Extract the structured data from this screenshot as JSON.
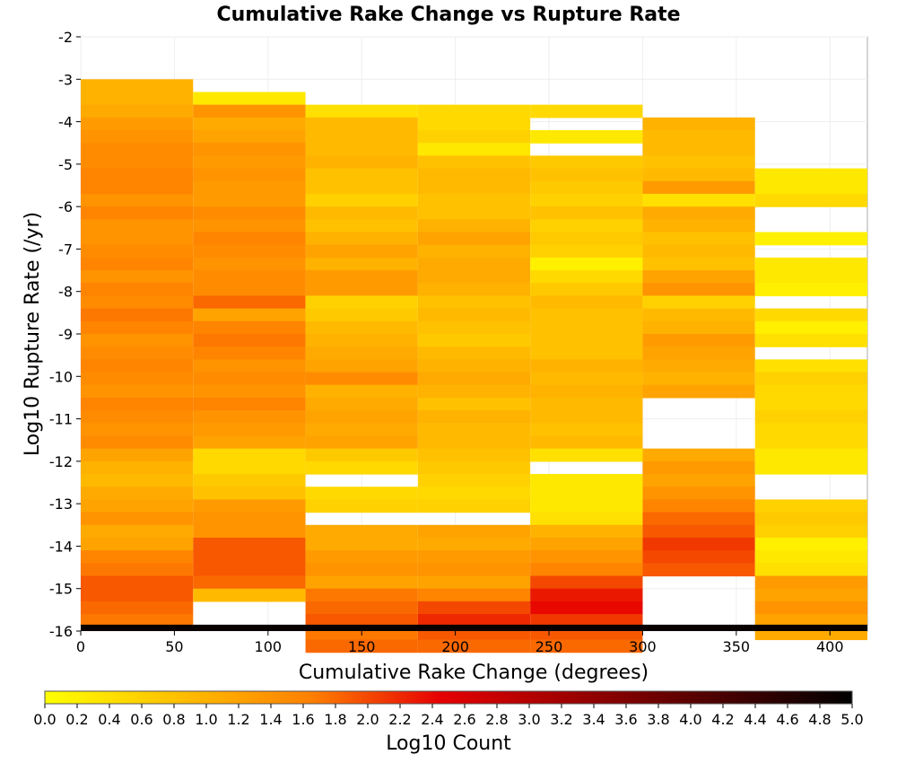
{
  "chart_data": {
    "type": "heatmap",
    "title": "Cumulative Rake Change vs Rupture Rate",
    "xlabel": "Cumulative Rake Change (degrees)",
    "ylabel": "Log10 Rupture Rate (/yr)",
    "xlim": [
      0,
      420
    ],
    "ylim": [
      -16,
      -2
    ],
    "xticks": [
      0,
      50,
      100,
      150,
      200,
      250,
      300,
      350,
      400
    ],
    "yticks": [
      -2,
      -3,
      -4,
      -5,
      -6,
      -7,
      -8,
      -9,
      -10,
      -11,
      -12,
      -13,
      -14,
      -15,
      -16
    ],
    "x_bin_width": 60,
    "y_bin_height": 0.3,
    "grid": true,
    "colorbar": {
      "label": "Log10 Count",
      "range": [
        0,
        5
      ],
      "ticks": [
        "0.0",
        "0.2",
        "0.4",
        "0.6",
        "0.8",
        "1.0",
        "1.2",
        "1.4",
        "1.6",
        "1.8",
        "2.0",
        "2.2",
        "2.4",
        "2.6",
        "2.8",
        "3.0",
        "3.2",
        "3.4",
        "3.6",
        "3.8",
        "4.0",
        "4.2",
        "4.4",
        "4.6",
        "4.8",
        "5.0"
      ],
      "colors": [
        "#ffff00",
        "#ff8000",
        "#e60000",
        "#000000"
      ]
    },
    "columns": [
      {
        "x_start": 0,
        "y_top": -3.0,
        "values": [
          1.0,
          1.0,
          1.1,
          1.3,
          1.4,
          1.5,
          1.5,
          1.6,
          1.6,
          1.4,
          1.6,
          1.4,
          1.4,
          1.5,
          1.6,
          1.4,
          1.6,
          1.5,
          1.7,
          1.6,
          1.4,
          1.5,
          1.6,
          1.5,
          1.4,
          1.6,
          1.5,
          1.4,
          1.5,
          1.2,
          1.0,
          0.9,
          1.1,
          1.2,
          1.4,
          1.1,
          1.2,
          1.6,
          1.7,
          1.9,
          1.9,
          1.8,
          1.7
        ]
      },
      {
        "x_start": 60,
        "y_top": -3.3,
        "values": [
          0.3,
          1.4,
          1.1,
          1.2,
          1.4,
          1.3,
          1.4,
          1.3,
          1.3,
          1.5,
          1.4,
          1.6,
          1.5,
          1.4,
          1.5,
          1.5,
          1.8,
          1.2,
          1.6,
          1.7,
          1.6,
          1.4,
          1.5,
          1.4,
          1.6,
          1.4,
          1.3,
          1.2,
          0.5,
          0.5,
          0.7,
          0.8,
          1.3,
          1.4,
          1.4,
          1.9,
          1.9,
          1.9,
          1.8,
          0.9
        ]
      },
      {
        "x_start": 120,
        "y_top": -3.6,
        "values": [
          0.4,
          0.9,
          0.9,
          0.9,
          1.0,
          0.8,
          0.8,
          0.6,
          0.9,
          0.8,
          1.0,
          1.2,
          1.0,
          1.3,
          1.3,
          0.6,
          0.7,
          0.9,
          1.0,
          1.1,
          1.2,
          1.5,
          1.0,
          1.1,
          1.2,
          1.1,
          1.2,
          0.7,
          0.5,
          null,
          0.5,
          0.6,
          null,
          1.1,
          1.1,
          1.3,
          1.4,
          1.2,
          1.7,
          1.8,
          1.9,
          1.7,
          1.8
        ]
      },
      {
        "x_start": 180,
        "y_top": -3.6,
        "values": [
          0.5,
          0.5,
          0.6,
          0.3,
          0.8,
          0.9,
          0.9,
          0.8,
          0.8,
          1.0,
          1.2,
          1.0,
          1.1,
          1.1,
          1.0,
          0.8,
          0.9,
          0.8,
          0.7,
          0.9,
          1.0,
          1.1,
          1.0,
          0.8,
          1.0,
          0.9,
          0.9,
          0.8,
          0.7,
          0.6,
          0.5,
          0.6,
          null,
          1.2,
          1.1,
          1.3,
          1.4,
          1.2,
          1.6,
          2.0,
          2.2,
          1.9,
          1.8
        ]
      },
      {
        "x_start": 240,
        "y_top": -3.6,
        "values": [
          0.5,
          null,
          0.3,
          null,
          0.7,
          0.8,
          0.7,
          0.6,
          0.8,
          0.6,
          0.7,
          0.6,
          0.2,
          0.5,
          0.7,
          0.9,
          0.8,
          0.8,
          0.8,
          0.8,
          1.0,
          0.9,
          1.0,
          0.9,
          0.9,
          0.8,
          0.9,
          0.4,
          null,
          0.3,
          0.3,
          0.3,
          0.4,
          1.0,
          1.2,
          1.4,
          1.6,
          2.0,
          2.3,
          2.4,
          2.1,
          1.9,
          1.8
        ]
      },
      {
        "x_start": 300,
        "y_top": -3.9,
        "values": [
          1.0,
          0.9,
          0.9,
          0.8,
          0.9,
          1.3,
          0.4,
          1.1,
          1.0,
          0.8,
          0.9,
          0.8,
          1.2,
          1.4,
          0.6,
          0.9,
          1.0,
          1.3,
          1.2,
          1.1,
          1.0,
          1.2,
          null,
          null,
          null,
          null,
          1.1,
          1.3,
          1.2,
          1.4,
          1.6,
          1.8,
          1.9,
          2.1,
          2.0,
          1.9
        ]
      },
      {
        "x_start": 360,
        "y_top": -5.1,
        "values": [
          0.3,
          0.3,
          0.5,
          null,
          null,
          0.2,
          null,
          0.3,
          0.3,
          0.2,
          null,
          0.5,
          0.2,
          0.4,
          null,
          0.4,
          0.6,
          0.5,
          0.5,
          0.6,
          0.5,
          0.5,
          0.3,
          0.3,
          null,
          null,
          0.6,
          0.7,
          0.6,
          0.2,
          0.3,
          0.4,
          1.3,
          1.2,
          1.4,
          1.2,
          1.1
        ]
      }
    ],
    "floor_row": {
      "y_bottom": -16,
      "value": 4.9
    }
  }
}
